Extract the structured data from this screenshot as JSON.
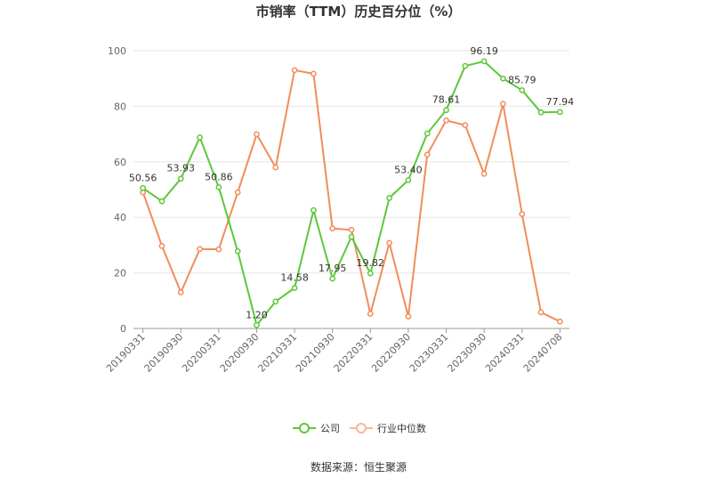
{
  "chart_data": {
    "type": "line",
    "title": "市销率（TTM）历史百分位（%）",
    "source": "数据来源：恒生聚源",
    "x_tick_labels": [
      "20190331",
      "20190930",
      "20200331",
      "20200930",
      "20210331",
      "20210930",
      "20220331",
      "20220930",
      "20230331",
      "20230930",
      "20240331",
      "20240708"
    ],
    "ylim": [
      0,
      100
    ],
    "y_ticks": [
      0,
      20,
      40,
      60,
      80,
      100
    ],
    "grid": true,
    "legend_position": "bottom",
    "series": [
      {
        "name": "公司",
        "color": "#5cc83a",
        "values": [
          50.56,
          45.8,
          53.93,
          68.8,
          50.86,
          27.8,
          1.2,
          9.7,
          14.58,
          42.6,
          17.95,
          33.0,
          19.82,
          47.0,
          53.4,
          70.2,
          78.61,
          94.5,
          96.19,
          90.0,
          85.79,
          77.8,
          77.94
        ],
        "labels": {
          "0": "50.56",
          "2": "53.93",
          "4": "50.86",
          "6": "1.20",
          "8": "14.58",
          "10": "17.95",
          "12": "19.82",
          "14": "53.40",
          "16": "78.61",
          "18": "96.19",
          "20": "85.79",
          "22": "77.94"
        }
      },
      {
        "name": "行业中位数",
        "color": "#f28c5a",
        "values": [
          49.0,
          29.7,
          13.0,
          28.6,
          28.5,
          49.0,
          69.9,
          58.0,
          93.0,
          91.7,
          36.0,
          35.5,
          5.3,
          30.8,
          4.3,
          62.6,
          74.9,
          73.2,
          55.7,
          80.9,
          41.2,
          5.8,
          2.5
        ]
      }
    ]
  },
  "legend": {
    "items": [
      {
        "label": "公司",
        "color": "#5cc83a"
      },
      {
        "label": "行业中位数",
        "color": "#f5b896"
      }
    ]
  }
}
